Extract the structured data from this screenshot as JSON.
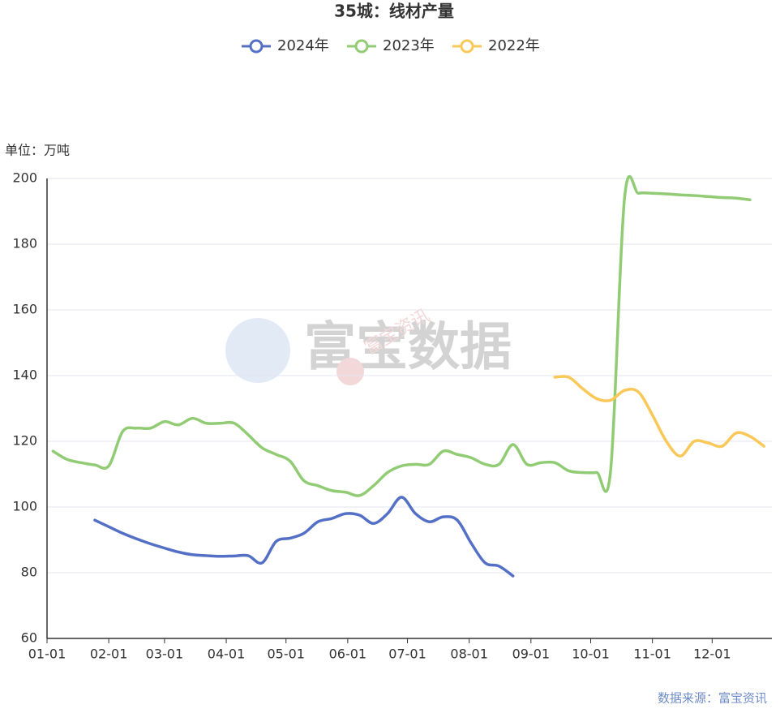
{
  "chart_data": {
    "type": "line",
    "title": "35城：线材产量",
    "y_label": "单位：万吨",
    "source": "数据来源：富宝资讯",
    "watermark": "富宝数据",
    "watermark_small": "富宝资讯",
    "x": [
      "01-04",
      "01-11",
      "01-18",
      "01-25",
      "02-01",
      "02-08",
      "02-15",
      "02-22",
      "03-01",
      "03-08",
      "03-15",
      "03-22",
      "03-29",
      "04-05",
      "04-12",
      "04-19",
      "04-26",
      "05-03",
      "05-10",
      "05-17",
      "05-24",
      "05-31",
      "06-07",
      "06-14",
      "06-21",
      "06-28",
      "07-05",
      "07-12",
      "07-19",
      "07-26",
      "08-02",
      "08-09",
      "08-16",
      "08-23",
      "08-30",
      "09-06",
      "09-13",
      "09-20",
      "09-27",
      "10-04",
      "10-11",
      "10-18",
      "10-25",
      "11-01",
      "11-08",
      "11-15",
      "11-22",
      "11-29",
      "12-06",
      "12-13",
      "12-20",
      "12-27"
    ],
    "series": [
      {
        "name": "2024年",
        "color": "#5470c6",
        "values": [
          null,
          null,
          null,
          96,
          94,
          92,
          90.3,
          88.8,
          87.5,
          86.3,
          85.5,
          85.2,
          85,
          85.1,
          85.2,
          83,
          89.5,
          90.5,
          92,
          95.5,
          96.5,
          98,
          97.5,
          95,
          98,
          103,
          98,
          95.5,
          97,
          96,
          89,
          83,
          82,
          79,
          null,
          null,
          null,
          null,
          null,
          null,
          null,
          null,
          null,
          null,
          null,
          null,
          null,
          null,
          null,
          null,
          null,
          null
        ]
      },
      {
        "name": "2023年",
        "color": "#91cc75",
        "values": [
          117,
          114.5,
          113.5,
          112.8,
          112.5,
          123,
          124,
          124,
          126,
          125,
          127,
          125.5,
          125.5,
          125.5,
          122,
          118,
          116,
          114,
          108,
          106.5,
          105,
          104.5,
          103.5,
          106.5,
          110.5,
          112.5,
          113,
          113,
          117,
          116,
          115,
          113,
          113,
          119,
          113,
          113.5,
          113.5,
          111,
          110.5,
          110.5,
          111,
          194,
          195.5,
          195.5,
          195.3,
          195,
          194.8,
          194.5,
          194.2,
          194,
          193.5,
          null
        ]
      },
      {
        "name": "2022年",
        "color": "#fac858",
        "values": [
          null,
          null,
          null,
          null,
          null,
          null,
          null,
          null,
          null,
          null,
          null,
          null,
          null,
          null,
          null,
          null,
          null,
          null,
          null,
          null,
          null,
          null,
          null,
          null,
          null,
          null,
          null,
          null,
          null,
          null,
          null,
          null,
          null,
          null,
          null,
          null,
          139.5,
          139.5,
          136,
          133,
          132.5,
          135.5,
          135,
          128,
          120,
          115.5,
          120,
          119.5,
          118.5,
          122.5,
          121.5,
          118.5
        ]
      }
    ],
    "xlim": [
      "01-01",
      "12-31"
    ],
    "xticks": [
      "01-01",
      "02-01",
      "03-01",
      "04-01",
      "05-01",
      "06-01",
      "07-01",
      "08-01",
      "09-01",
      "10-01",
      "11-01",
      "12-01"
    ],
    "ylim": [
      60,
      200
    ],
    "yticks": [
      60,
      80,
      100,
      120,
      140,
      160,
      180,
      200
    ],
    "grid": true
  }
}
